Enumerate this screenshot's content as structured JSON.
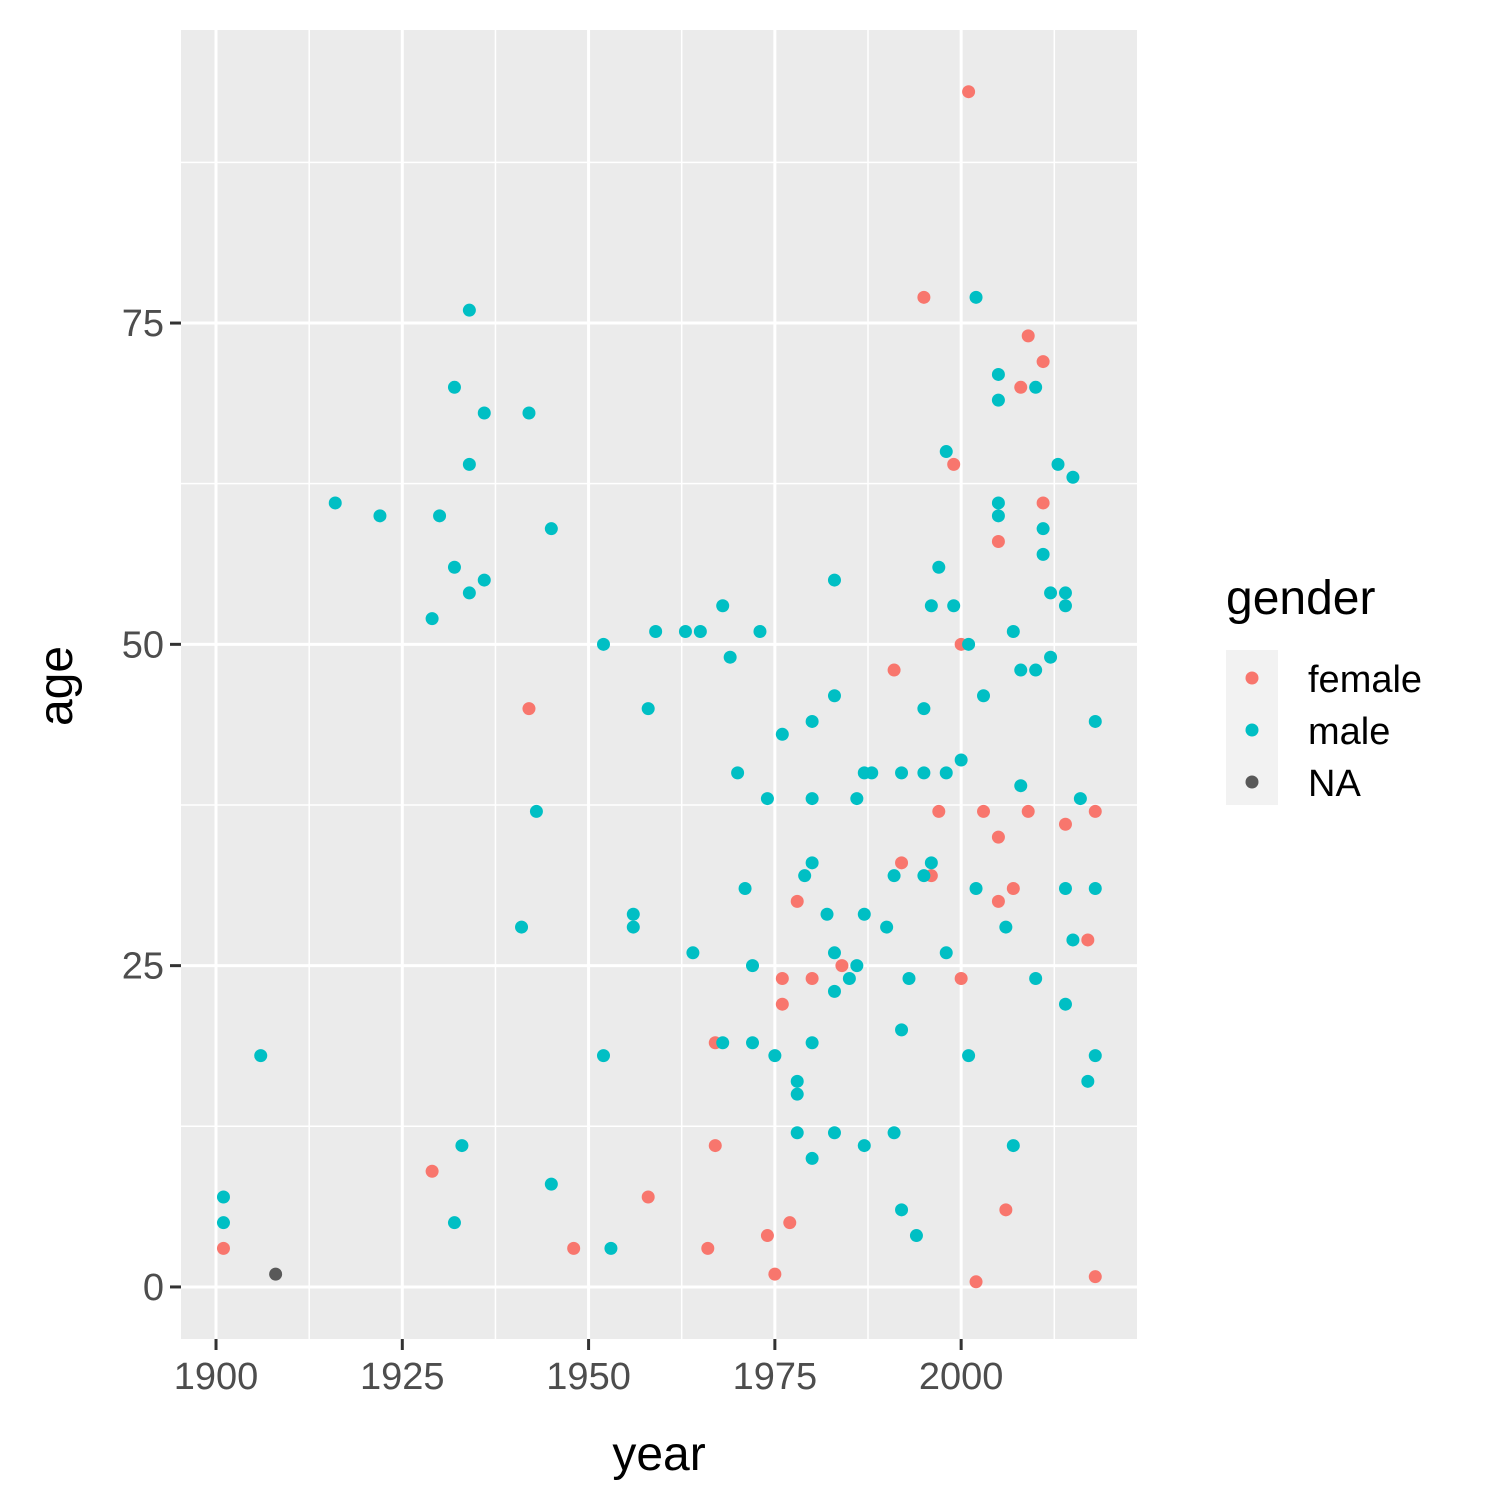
{
  "chart_data": {
    "type": "scatter",
    "xlabel": "year",
    "ylabel": "age",
    "xlim": [
      1895.3,
      2023.6
    ],
    "ylim": [
      -4.05,
      97.8
    ],
    "x_ticks": [
      1900,
      1925,
      1950,
      1975,
      2000
    ],
    "y_ticks": [
      0,
      25,
      50,
      75
    ],
    "grid": true,
    "legend": {
      "title": "gender",
      "position": "right",
      "entries": [
        "female",
        "male",
        "NA"
      ]
    },
    "colors": {
      "female": "#F8766D",
      "male": "#00BFC4",
      "NA": "#595959",
      "panel": "#EBEBEB",
      "grid": "#FFFFFF"
    },
    "series": [
      {
        "name": "female",
        "points": [
          [
            1901,
            3
          ],
          [
            1929,
            9
          ],
          [
            1942,
            45
          ],
          [
            1948,
            3
          ],
          [
            1958,
            7
          ],
          [
            1966,
            3
          ],
          [
            1967,
            19
          ],
          [
            1967,
            11
          ],
          [
            1974,
            4
          ],
          [
            1975,
            1
          ],
          [
            1976,
            24
          ],
          [
            1976,
            22
          ],
          [
            1977,
            5
          ],
          [
            1978,
            30
          ],
          [
            1980,
            24
          ],
          [
            1984,
            25
          ],
          [
            1991,
            48
          ],
          [
            1992,
            33
          ],
          [
            1995,
            77
          ],
          [
            1996,
            32
          ],
          [
            1997,
            37
          ],
          [
            1999,
            64
          ],
          [
            2000,
            50
          ],
          [
            2000,
            24
          ],
          [
            2001,
            93
          ],
          [
            2002,
            0.4
          ],
          [
            2003,
            37
          ],
          [
            2005,
            58
          ],
          [
            2005,
            35
          ],
          [
            2005,
            30
          ],
          [
            2006,
            6
          ],
          [
            2007,
            31
          ],
          [
            2008,
            70
          ],
          [
            2009,
            74
          ],
          [
            2009,
            37
          ],
          [
            2011,
            72
          ],
          [
            2011,
            61
          ],
          [
            2014,
            36
          ],
          [
            2017,
            27
          ],
          [
            2018,
            37
          ],
          [
            2018,
            0.8
          ]
        ]
      },
      {
        "name": "male",
        "points": [
          [
            1901,
            7
          ],
          [
            1901,
            5
          ],
          [
            1906,
            18
          ],
          [
            1916,
            61
          ],
          [
            1922,
            60
          ],
          [
            1929,
            52
          ],
          [
            1930,
            60
          ],
          [
            1932,
            70
          ],
          [
            1932,
            56
          ],
          [
            1932,
            5
          ],
          [
            1933,
            11
          ],
          [
            1934,
            76
          ],
          [
            1934,
            64
          ],
          [
            1934,
            54
          ],
          [
            1936,
            68
          ],
          [
            1936,
            55
          ],
          [
            1941,
            28
          ],
          [
            1942,
            68
          ],
          [
            1943,
            37
          ],
          [
            1945,
            59
          ],
          [
            1945,
            8
          ],
          [
            1952,
            50
          ],
          [
            1952,
            18
          ],
          [
            1953,
            3
          ],
          [
            1956,
            29
          ],
          [
            1956,
            28
          ],
          [
            1958,
            45
          ],
          [
            1959,
            51
          ],
          [
            1963,
            51
          ],
          [
            1964,
            26
          ],
          [
            1965,
            51
          ],
          [
            1968,
            53
          ],
          [
            1968,
            19
          ],
          [
            1969,
            49
          ],
          [
            1970,
            40
          ],
          [
            1971,
            31
          ],
          [
            1972,
            25
          ],
          [
            1972,
            19
          ],
          [
            1973,
            51
          ],
          [
            1974,
            38
          ],
          [
            1975,
            18
          ],
          [
            1976,
            43
          ],
          [
            1978,
            16
          ],
          [
            1978,
            15
          ],
          [
            1978,
            12
          ],
          [
            1979,
            32
          ],
          [
            1980,
            44
          ],
          [
            1980,
            38
          ],
          [
            1980,
            33
          ],
          [
            1980,
            19
          ],
          [
            1980,
            10
          ],
          [
            1982,
            29
          ],
          [
            1983,
            55
          ],
          [
            1983,
            46
          ],
          [
            1983,
            26
          ],
          [
            1983,
            23
          ],
          [
            1983,
            12
          ],
          [
            1985,
            24
          ],
          [
            1986,
            38
          ],
          [
            1986,
            25
          ],
          [
            1987,
            40
          ],
          [
            1987,
            29
          ],
          [
            1987,
            11
          ],
          [
            1988,
            40
          ],
          [
            1990,
            28
          ],
          [
            1991,
            32
          ],
          [
            1991,
            12
          ],
          [
            1992,
            40
          ],
          [
            1992,
            20
          ],
          [
            1992,
            6
          ],
          [
            1993,
            24
          ],
          [
            1994,
            4
          ],
          [
            1995,
            45
          ],
          [
            1995,
            40
          ],
          [
            1995,
            32
          ],
          [
            1996,
            53
          ],
          [
            1996,
            33
          ],
          [
            1997,
            56
          ],
          [
            1998,
            65
          ],
          [
            1998,
            40
          ],
          [
            1998,
            26
          ],
          [
            1999,
            53
          ],
          [
            2000,
            41
          ],
          [
            2001,
            50
          ],
          [
            2001,
            18
          ],
          [
            2002,
            77
          ],
          [
            2002,
            31
          ],
          [
            2003,
            46
          ],
          [
            2005,
            71
          ],
          [
            2005,
            69
          ],
          [
            2005,
            61
          ],
          [
            2005,
            60
          ],
          [
            2006,
            28
          ],
          [
            2007,
            51
          ],
          [
            2007,
            11
          ],
          [
            2008,
            48
          ],
          [
            2008,
            39
          ],
          [
            2010,
            70
          ],
          [
            2010,
            48
          ],
          [
            2010,
            24
          ],
          [
            2011,
            59
          ],
          [
            2011,
            57
          ],
          [
            2012,
            54
          ],
          [
            2012,
            49
          ],
          [
            2013,
            64
          ],
          [
            2014,
            54
          ],
          [
            2014,
            53
          ],
          [
            2014,
            31
          ],
          [
            2014,
            22
          ],
          [
            2015,
            63
          ],
          [
            2015,
            27
          ],
          [
            2016,
            38
          ],
          [
            2017,
            16
          ],
          [
            2018,
            44
          ],
          [
            2018,
            31
          ],
          [
            2018,
            18
          ]
        ]
      },
      {
        "name": "NA",
        "points": [
          [
            1908,
            1
          ]
        ]
      }
    ]
  }
}
